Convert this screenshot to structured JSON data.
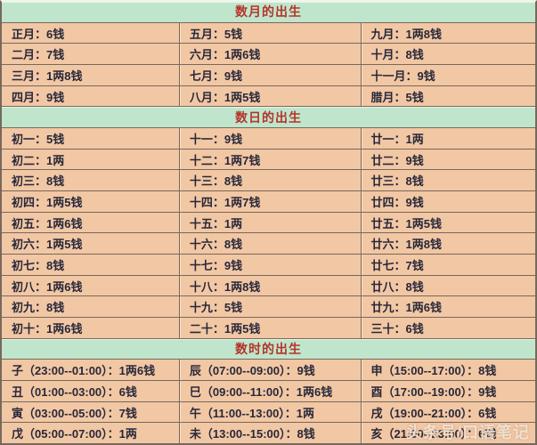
{
  "table": {
    "sections": [
      {
        "title": "数月的出生",
        "rows": [
          [
            "正月：6钱",
            "五月：5钱",
            "九月：1两8钱"
          ],
          [
            "二月：7钱",
            "六月：1两6钱",
            "十月：8钱"
          ],
          [
            "三月：1两8钱",
            "七月：9钱",
            "十一月：9钱"
          ],
          [
            "四月：9钱",
            "八月：1两5钱",
            "腊月：5钱"
          ]
        ]
      },
      {
        "title": "数日的出生",
        "rows": [
          [
            "初一：5钱",
            "十一：9钱",
            "廿一：1两"
          ],
          [
            "初二：1两",
            "十二：1两7钱",
            "廿二：9钱"
          ],
          [
            "初三：8钱",
            "十三：8钱",
            "廿三：8钱"
          ],
          [
            "初四：1两5钱",
            "十四：1两7钱",
            "廿四：9钱"
          ],
          [
            "初五：1两6钱",
            "十五：1两",
            "廿五：1两5钱"
          ],
          [
            "初六：1两5钱",
            "十六：8钱",
            "廿六：1两8钱"
          ],
          [
            "初七：8钱",
            "十七：9钱",
            "廿七：7钱"
          ],
          [
            "初八：1两6钱",
            "十八：1两8钱",
            "廿八：8钱"
          ],
          [
            "初九：8钱",
            "十九：5钱",
            "廿九：1两6钱"
          ],
          [
            "初十：1两6钱",
            "二十：1两5钱",
            "三十：6钱"
          ]
        ]
      },
      {
        "title": "数时的出生",
        "rows": [
          [
            "子（23:00--01:00）：1两6钱",
            "辰（07:00--09:00）：9钱",
            "申（15:00--17:00）：8钱"
          ],
          [
            "丑（01:00--03:00）：6钱",
            "巳（09:00--11:00）：1两6钱",
            "酉（17:00--19:00）：9钱"
          ],
          [
            "寅（03:00--05:00）：7钱",
            "午（11:00--13:00）：1两",
            "戌（19:00--21:00）：6钱"
          ],
          [
            "戊（05:00--07:00）：1两",
            "未（13:00--15:00）：8钱",
            "亥（21:00--23:00）：6钱"
          ]
        ]
      }
    ]
  },
  "watermark": "头条号/口语笔记",
  "colors": {
    "header_bg": "#bfe6cc",
    "header_text": "#b5332a",
    "cell_bg": "#f2c7a4",
    "cell_text": "#27283a",
    "border": "#77685c"
  }
}
